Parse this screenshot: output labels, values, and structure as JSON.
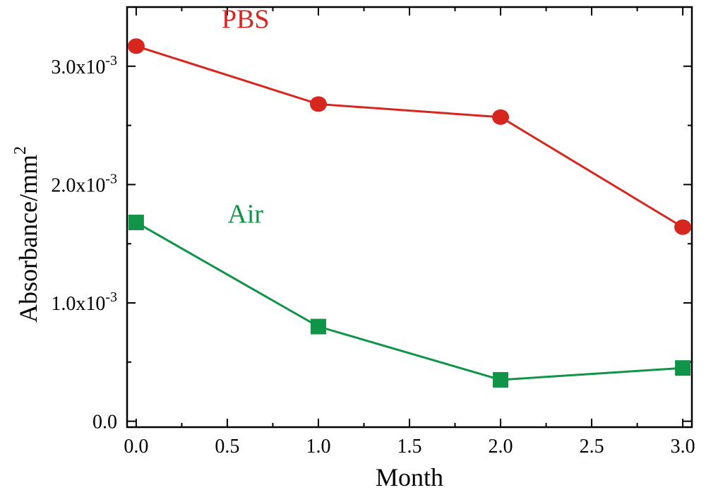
{
  "chart_data": {
    "type": "line",
    "title": "",
    "xlabel": "Month",
    "ylabel": "Absorbance/mm",
    "ylabel_superscript": "2",
    "xlim": [
      -0.05,
      3.05
    ],
    "ylim": [
      -0.05,
      3.5
    ],
    "x_ticks": [
      {
        "value": 0.0,
        "label": "0.0"
      },
      {
        "value": 0.5,
        "label": "0.5"
      },
      {
        "value": 1.0,
        "label": "1.0"
      },
      {
        "value": 1.5,
        "label": "1.5"
      },
      {
        "value": 2.0,
        "label": "2.0"
      },
      {
        "value": 2.5,
        "label": "2.5"
      },
      {
        "value": 3.0,
        "label": "3.0"
      }
    ],
    "y_ticks": [
      {
        "value": 0.0,
        "label": "0.0",
        "exp": ""
      },
      {
        "value": 1.0,
        "label": "1.0x10",
        "exp": "-3"
      },
      {
        "value": 2.0,
        "label": "2.0x10",
        "exp": "-3"
      },
      {
        "value": 3.0,
        "label": "3.0x10",
        "exp": "-3"
      }
    ],
    "y_unit_note": "values in units of 10^-3",
    "grid": false,
    "series": [
      {
        "name": "PBS",
        "color": "#d7261e",
        "marker": "circle",
        "x": [
          0,
          1,
          2,
          3
        ],
        "values": [
          3.17,
          2.68,
          2.57,
          1.64
        ]
      },
      {
        "name": "Air",
        "color": "#109447",
        "marker": "square",
        "x": [
          0,
          1,
          2,
          3
        ],
        "values": [
          1.68,
          0.8,
          0.35,
          0.45
        ]
      }
    ]
  }
}
